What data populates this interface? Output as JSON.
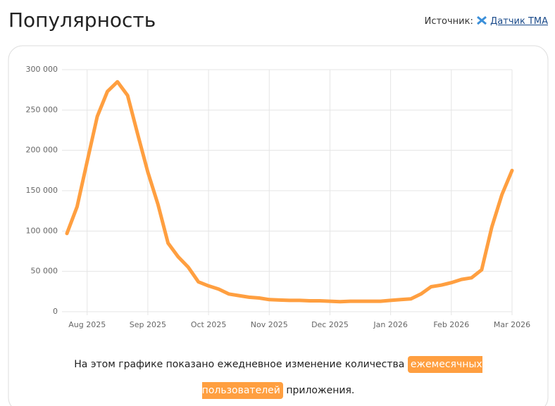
{
  "header": {
    "title": "Популярность",
    "source_label": "Источник:",
    "source_link": "Датчик TMA"
  },
  "chart_data": {
    "type": "line",
    "categories": [
      null,
      null,
      "Aug 2025",
      null,
      null,
      null,
      null,
      null,
      "Sep 2025",
      null,
      null,
      null,
      null,
      null,
      "Oct 2025",
      null,
      null,
      null,
      null,
      null,
      "Nov 2025",
      null,
      null,
      null,
      null,
      null,
      "Dec 2025",
      null,
      null,
      null,
      null,
      null,
      "Jan 2026",
      null,
      null,
      null,
      null,
      null,
      "Feb 2026",
      null,
      null,
      null,
      null,
      null,
      "Mar 2026"
    ],
    "series": [
      {
        "color": "#ff9f40",
        "values": [
          97000,
          130000,
          186000,
          242000,
          273000,
          285000,
          268000,
          220000,
          173000,
          133000,
          85000,
          68000,
          55000,
          37000,
          32000,
          28000,
          22000,
          20000,
          18000,
          17000,
          15000,
          14500,
          14000,
          14000,
          13500,
          13500,
          13000,
          12500,
          13000,
          13000,
          13000,
          13000,
          14000,
          15000,
          16000,
          22000,
          31000,
          33000,
          36000,
          40000,
          42000,
          52000,
          105000,
          145000,
          175000
        ]
      }
    ],
    "ylim": [
      0,
      300000
    ],
    "yticks": [
      0,
      {
        "value": 50000,
        "label": "50 000"
      },
      {
        "value": 100000,
        "label": "100 000"
      },
      {
        "value": 150000,
        "label": "150 000"
      },
      {
        "value": 200000,
        "label": "200 000"
      },
      {
        "value": 250000,
        "label": "250 000"
      },
      {
        "value": 300000,
        "label": "300 000"
      }
    ],
    "grid": true
  },
  "caption": {
    "before": "На этом графике показано ежедневное изменение количества",
    "highlight": "ежемесячных пользователей",
    "after": "приложения."
  }
}
